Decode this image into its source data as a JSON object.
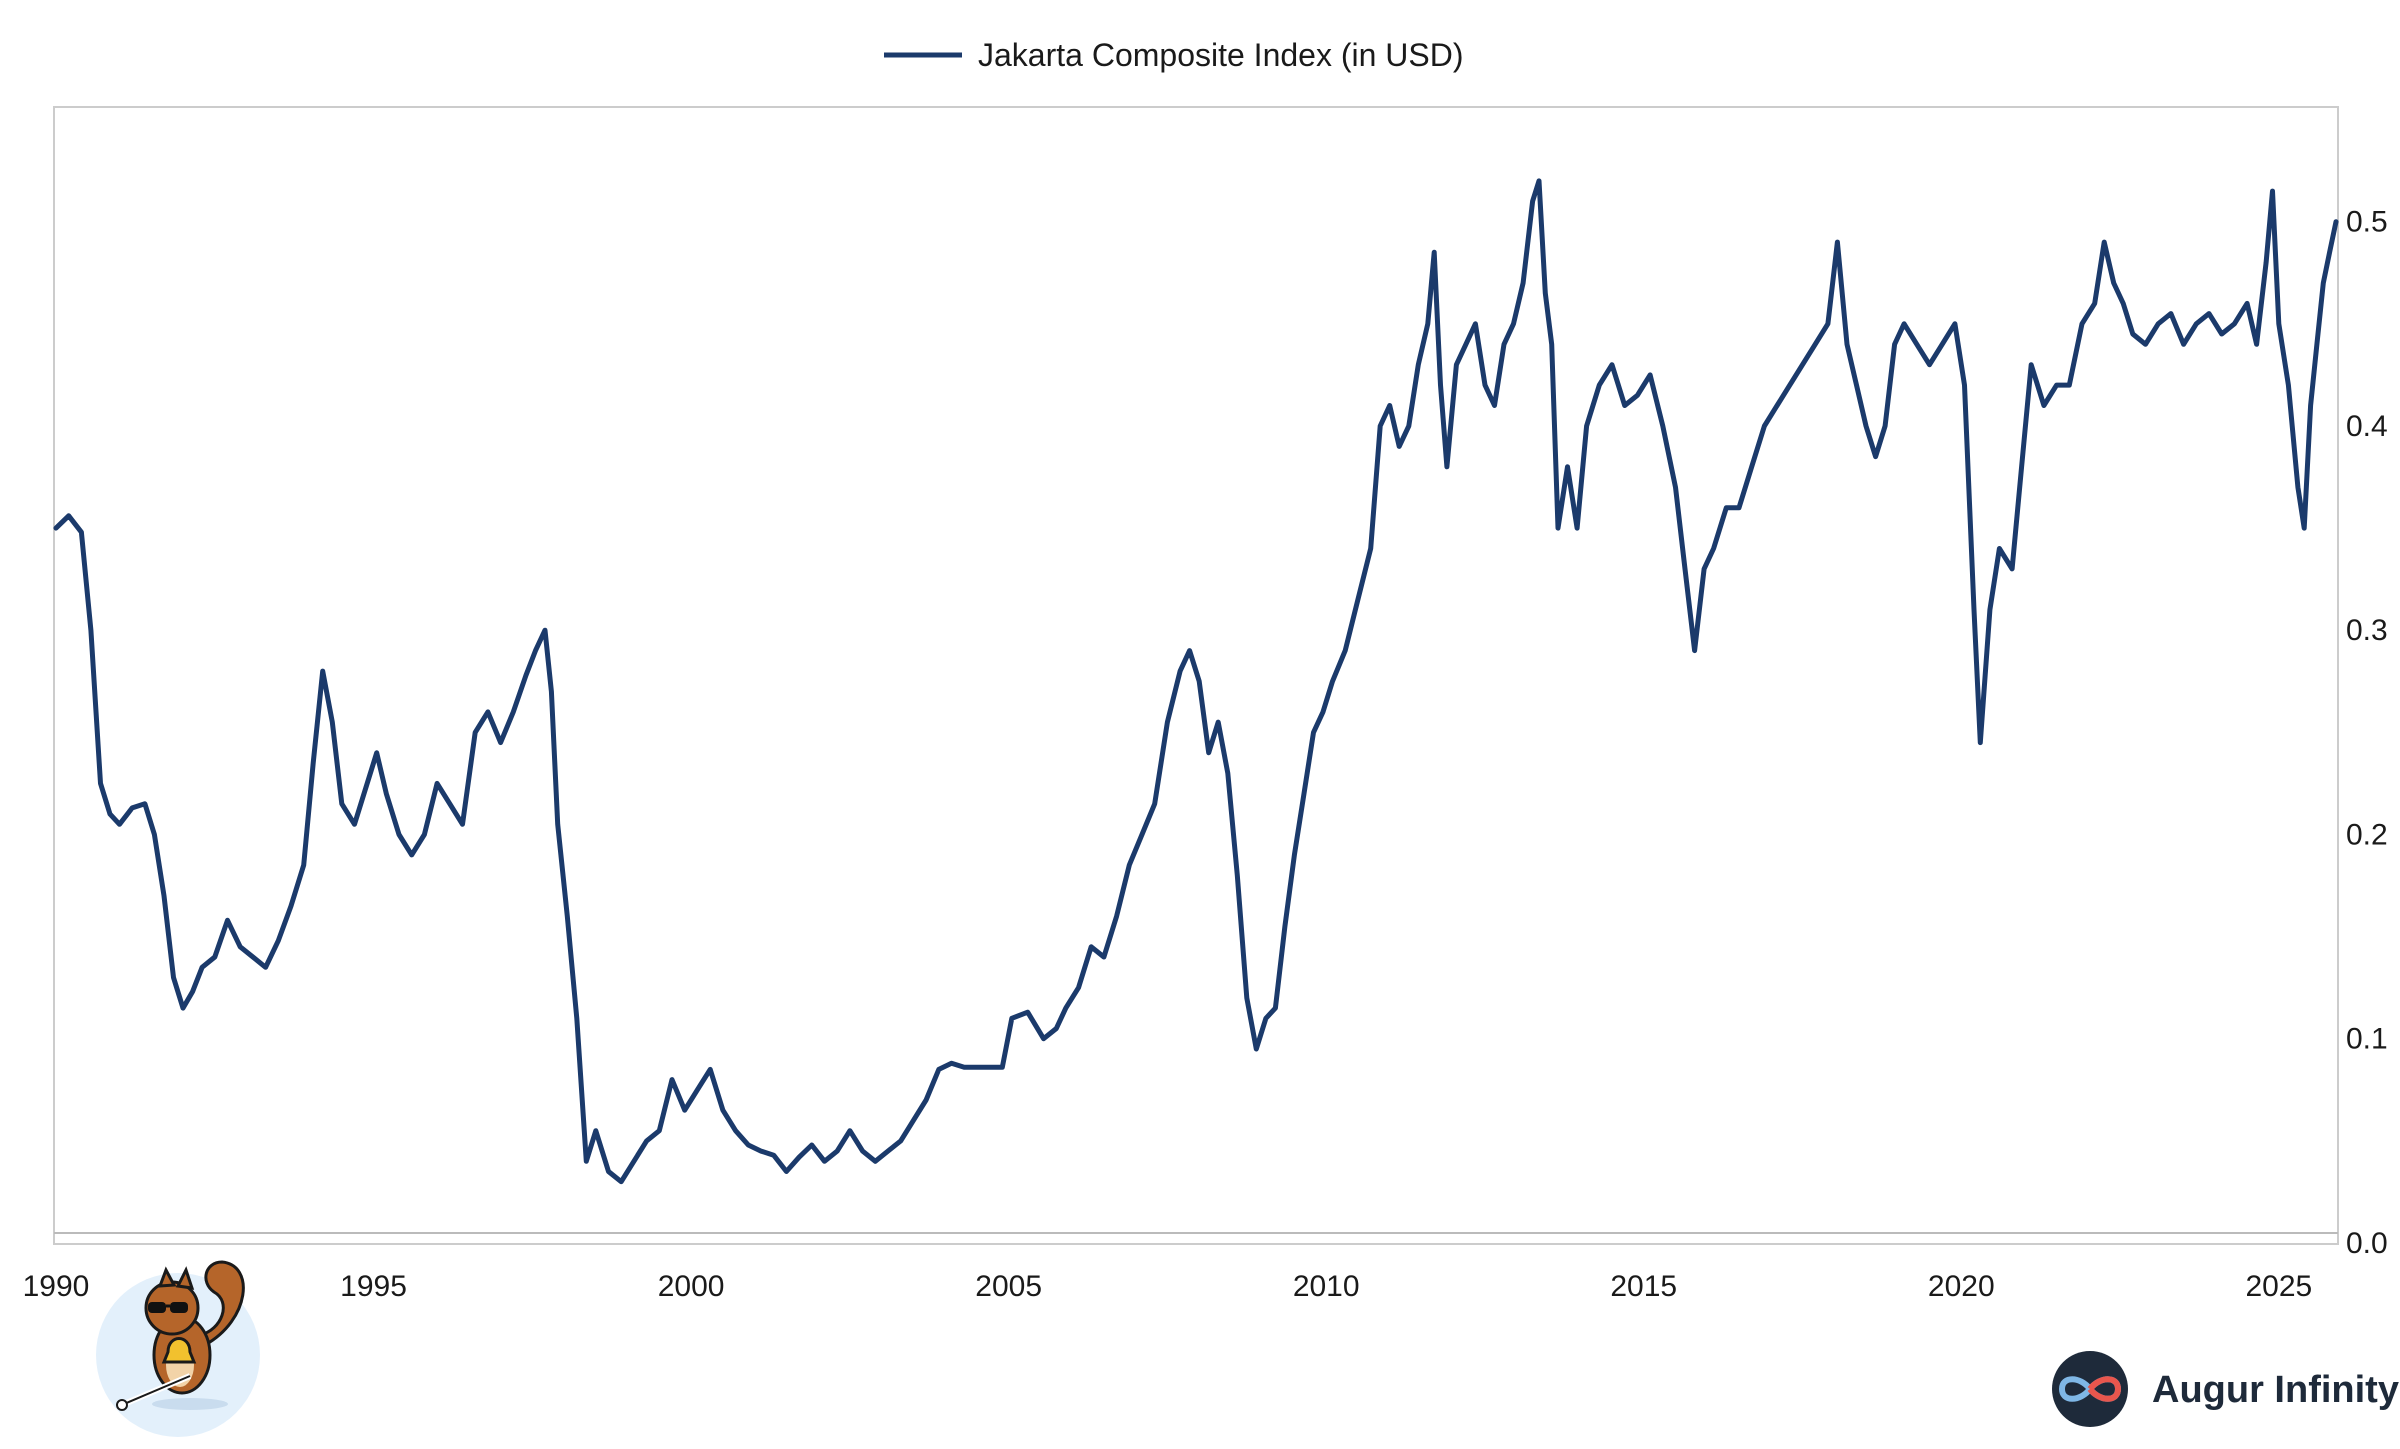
{
  "chart_data": {
    "type": "line",
    "title": "",
    "xlabel": "",
    "ylabel": "",
    "legend_position": "top-center",
    "grid": false,
    "y_axis_side": "right",
    "xlim": [
      1990,
      2025.9
    ],
    "ylim": [
      0.0,
      0.54
    ],
    "x_ticks": [
      1990,
      1995,
      2000,
      2005,
      2010,
      2015,
      2020,
      2025
    ],
    "x_tick_labels": [
      "1990",
      "1995",
      "2000",
      "2005",
      "2010",
      "2015",
      "2020",
      "2025"
    ],
    "y_ticks": [
      0.0,
      0.1,
      0.2,
      0.3,
      0.4,
      0.5
    ],
    "y_tick_labels": [
      "0.0",
      "0.1",
      "0.2",
      "0.3",
      "0.4",
      "0.5"
    ],
    "series": [
      {
        "name": "Jakarta Composite Index (in USD)",
        "color": "#1b3a6b",
        "points": [
          [
            1990.0,
            0.35
          ],
          [
            1990.2,
            0.356
          ],
          [
            1990.4,
            0.348
          ],
          [
            1990.55,
            0.3
          ],
          [
            1990.7,
            0.225
          ],
          [
            1990.85,
            0.21
          ],
          [
            1991.0,
            0.205
          ],
          [
            1991.2,
            0.213
          ],
          [
            1991.4,
            0.215
          ],
          [
            1991.55,
            0.2
          ],
          [
            1991.7,
            0.17
          ],
          [
            1991.85,
            0.13
          ],
          [
            1992.0,
            0.115
          ],
          [
            1992.15,
            0.123
          ],
          [
            1992.3,
            0.135
          ],
          [
            1992.5,
            0.14
          ],
          [
            1992.7,
            0.158
          ],
          [
            1992.9,
            0.145
          ],
          [
            1993.1,
            0.14
          ],
          [
            1993.3,
            0.135
          ],
          [
            1993.5,
            0.148
          ],
          [
            1993.7,
            0.165
          ],
          [
            1993.9,
            0.185
          ],
          [
            1994.05,
            0.235
          ],
          [
            1994.2,
            0.28
          ],
          [
            1994.35,
            0.255
          ],
          [
            1994.5,
            0.215
          ],
          [
            1994.7,
            0.205
          ],
          [
            1994.9,
            0.225
          ],
          [
            1995.05,
            0.24
          ],
          [
            1995.2,
            0.22
          ],
          [
            1995.4,
            0.2
          ],
          [
            1995.6,
            0.19
          ],
          [
            1995.8,
            0.2
          ],
          [
            1996.0,
            0.225
          ],
          [
            1996.2,
            0.215
          ],
          [
            1996.4,
            0.205
          ],
          [
            1996.6,
            0.25
          ],
          [
            1996.8,
            0.26
          ],
          [
            1997.0,
            0.245
          ],
          [
            1997.2,
            0.26
          ],
          [
            1997.4,
            0.278
          ],
          [
            1997.55,
            0.29
          ],
          [
            1997.7,
            0.3
          ],
          [
            1997.8,
            0.27
          ],
          [
            1997.9,
            0.205
          ],
          [
            1998.05,
            0.16
          ],
          [
            1998.2,
            0.11
          ],
          [
            1998.35,
            0.04
          ],
          [
            1998.5,
            0.055
          ],
          [
            1998.7,
            0.035
          ],
          [
            1998.9,
            0.03
          ],
          [
            1999.1,
            0.04
          ],
          [
            1999.3,
            0.05
          ],
          [
            1999.5,
            0.055
          ],
          [
            1999.7,
            0.08
          ],
          [
            1999.9,
            0.065
          ],
          [
            2000.1,
            0.075
          ],
          [
            2000.3,
            0.085
          ],
          [
            2000.5,
            0.065
          ],
          [
            2000.7,
            0.055
          ],
          [
            2000.9,
            0.048
          ],
          [
            2001.1,
            0.045
          ],
          [
            2001.3,
            0.043
          ],
          [
            2001.5,
            0.035
          ],
          [
            2001.7,
            0.042
          ],
          [
            2001.9,
            0.048
          ],
          [
            2002.1,
            0.04
          ],
          [
            2002.3,
            0.045
          ],
          [
            2002.5,
            0.055
          ],
          [
            2002.7,
            0.045
          ],
          [
            2002.9,
            0.04
          ],
          [
            2003.1,
            0.045
          ],
          [
            2003.3,
            0.05
          ],
          [
            2003.5,
            0.06
          ],
          [
            2003.7,
            0.07
          ],
          [
            2003.9,
            0.085
          ],
          [
            2004.1,
            0.088
          ],
          [
            2004.3,
            0.086
          ],
          [
            2004.5,
            0.086
          ],
          [
            2004.7,
            0.086
          ],
          [
            2004.9,
            0.086
          ],
          [
            2005.05,
            0.11
          ],
          [
            2005.3,
            0.113
          ],
          [
            2005.55,
            0.1
          ],
          [
            2005.75,
            0.105
          ],
          [
            2005.9,
            0.115
          ],
          [
            2006.1,
            0.125
          ],
          [
            2006.3,
            0.145
          ],
          [
            2006.5,
            0.14
          ],
          [
            2006.7,
            0.16
          ],
          [
            2006.9,
            0.185
          ],
          [
            2007.1,
            0.2
          ],
          [
            2007.3,
            0.215
          ],
          [
            2007.5,
            0.255
          ],
          [
            2007.7,
            0.28
          ],
          [
            2007.85,
            0.29
          ],
          [
            2008.0,
            0.275
          ],
          [
            2008.15,
            0.24
          ],
          [
            2008.3,
            0.255
          ],
          [
            2008.45,
            0.23
          ],
          [
            2008.6,
            0.18
          ],
          [
            2008.75,
            0.12
          ],
          [
            2008.9,
            0.095
          ],
          [
            2009.05,
            0.11
          ],
          [
            2009.2,
            0.115
          ],
          [
            2009.35,
            0.155
          ],
          [
            2009.5,
            0.19
          ],
          [
            2009.65,
            0.22
          ],
          [
            2009.8,
            0.25
          ],
          [
            2009.95,
            0.26
          ],
          [
            2010.1,
            0.275
          ],
          [
            2010.3,
            0.29
          ],
          [
            2010.5,
            0.315
          ],
          [
            2010.7,
            0.34
          ],
          [
            2010.85,
            0.4
          ],
          [
            2011.0,
            0.41
          ],
          [
            2011.15,
            0.39
          ],
          [
            2011.3,
            0.4
          ],
          [
            2011.45,
            0.43
          ],
          [
            2011.6,
            0.45
          ],
          [
            2011.7,
            0.485
          ],
          [
            2011.8,
            0.42
          ],
          [
            2011.9,
            0.38
          ],
          [
            2012.05,
            0.43
          ],
          [
            2012.2,
            0.44
          ],
          [
            2012.35,
            0.45
          ],
          [
            2012.5,
            0.42
          ],
          [
            2012.65,
            0.41
          ],
          [
            2012.8,
            0.44
          ],
          [
            2012.95,
            0.45
          ],
          [
            2013.1,
            0.47
          ],
          [
            2013.25,
            0.51
          ],
          [
            2013.35,
            0.52
          ],
          [
            2013.45,
            0.465
          ],
          [
            2013.55,
            0.44
          ],
          [
            2013.65,
            0.35
          ],
          [
            2013.8,
            0.38
          ],
          [
            2013.95,
            0.35
          ],
          [
            2014.1,
            0.4
          ],
          [
            2014.3,
            0.42
          ],
          [
            2014.5,
            0.43
          ],
          [
            2014.7,
            0.41
          ],
          [
            2014.9,
            0.415
          ],
          [
            2015.1,
            0.425
          ],
          [
            2015.3,
            0.4
          ],
          [
            2015.5,
            0.37
          ],
          [
            2015.65,
            0.33
          ],
          [
            2015.8,
            0.29
          ],
          [
            2015.95,
            0.33
          ],
          [
            2016.1,
            0.34
          ],
          [
            2016.3,
            0.36
          ],
          [
            2016.5,
            0.36
          ],
          [
            2016.7,
            0.38
          ],
          [
            2016.9,
            0.4
          ],
          [
            2017.1,
            0.41
          ],
          [
            2017.3,
            0.42
          ],
          [
            2017.5,
            0.43
          ],
          [
            2017.7,
            0.44
          ],
          [
            2017.9,
            0.45
          ],
          [
            2018.05,
            0.49
          ],
          [
            2018.2,
            0.44
          ],
          [
            2018.35,
            0.42
          ],
          [
            2018.5,
            0.4
          ],
          [
            2018.65,
            0.385
          ],
          [
            2018.8,
            0.4
          ],
          [
            2018.95,
            0.44
          ],
          [
            2019.1,
            0.45
          ],
          [
            2019.3,
            0.44
          ],
          [
            2019.5,
            0.43
          ],
          [
            2019.7,
            0.44
          ],
          [
            2019.9,
            0.45
          ],
          [
            2020.05,
            0.42
          ],
          [
            2020.2,
            0.31
          ],
          [
            2020.3,
            0.245
          ],
          [
            2020.45,
            0.31
          ],
          [
            2020.6,
            0.34
          ],
          [
            2020.8,
            0.33
          ],
          [
            2020.95,
            0.38
          ],
          [
            2021.1,
            0.43
          ],
          [
            2021.3,
            0.41
          ],
          [
            2021.5,
            0.42
          ],
          [
            2021.7,
            0.42
          ],
          [
            2021.9,
            0.45
          ],
          [
            2022.1,
            0.46
          ],
          [
            2022.25,
            0.49
          ],
          [
            2022.4,
            0.47
          ],
          [
            2022.55,
            0.46
          ],
          [
            2022.7,
            0.445
          ],
          [
            2022.9,
            0.44
          ],
          [
            2023.1,
            0.45
          ],
          [
            2023.3,
            0.455
          ],
          [
            2023.5,
            0.44
          ],
          [
            2023.7,
            0.45
          ],
          [
            2023.9,
            0.455
          ],
          [
            2024.1,
            0.445
          ],
          [
            2024.3,
            0.45
          ],
          [
            2024.5,
            0.46
          ],
          [
            2024.65,
            0.44
          ],
          [
            2024.8,
            0.48
          ],
          [
            2024.9,
            0.515
          ],
          [
            2025.0,
            0.45
          ],
          [
            2025.15,
            0.42
          ],
          [
            2025.3,
            0.37
          ],
          [
            2025.4,
            0.35
          ],
          [
            2025.5,
            0.41
          ],
          [
            2025.6,
            0.44
          ],
          [
            2025.7,
            0.47
          ],
          [
            2025.8,
            0.485
          ],
          [
            2025.9,
            0.5
          ]
        ]
      }
    ]
  },
  "branding": {
    "logo_text": "Augur Infinity",
    "mascot_icon": "squirrel-mascot-icon",
    "logo_icon": "infinity-logo-icon"
  }
}
